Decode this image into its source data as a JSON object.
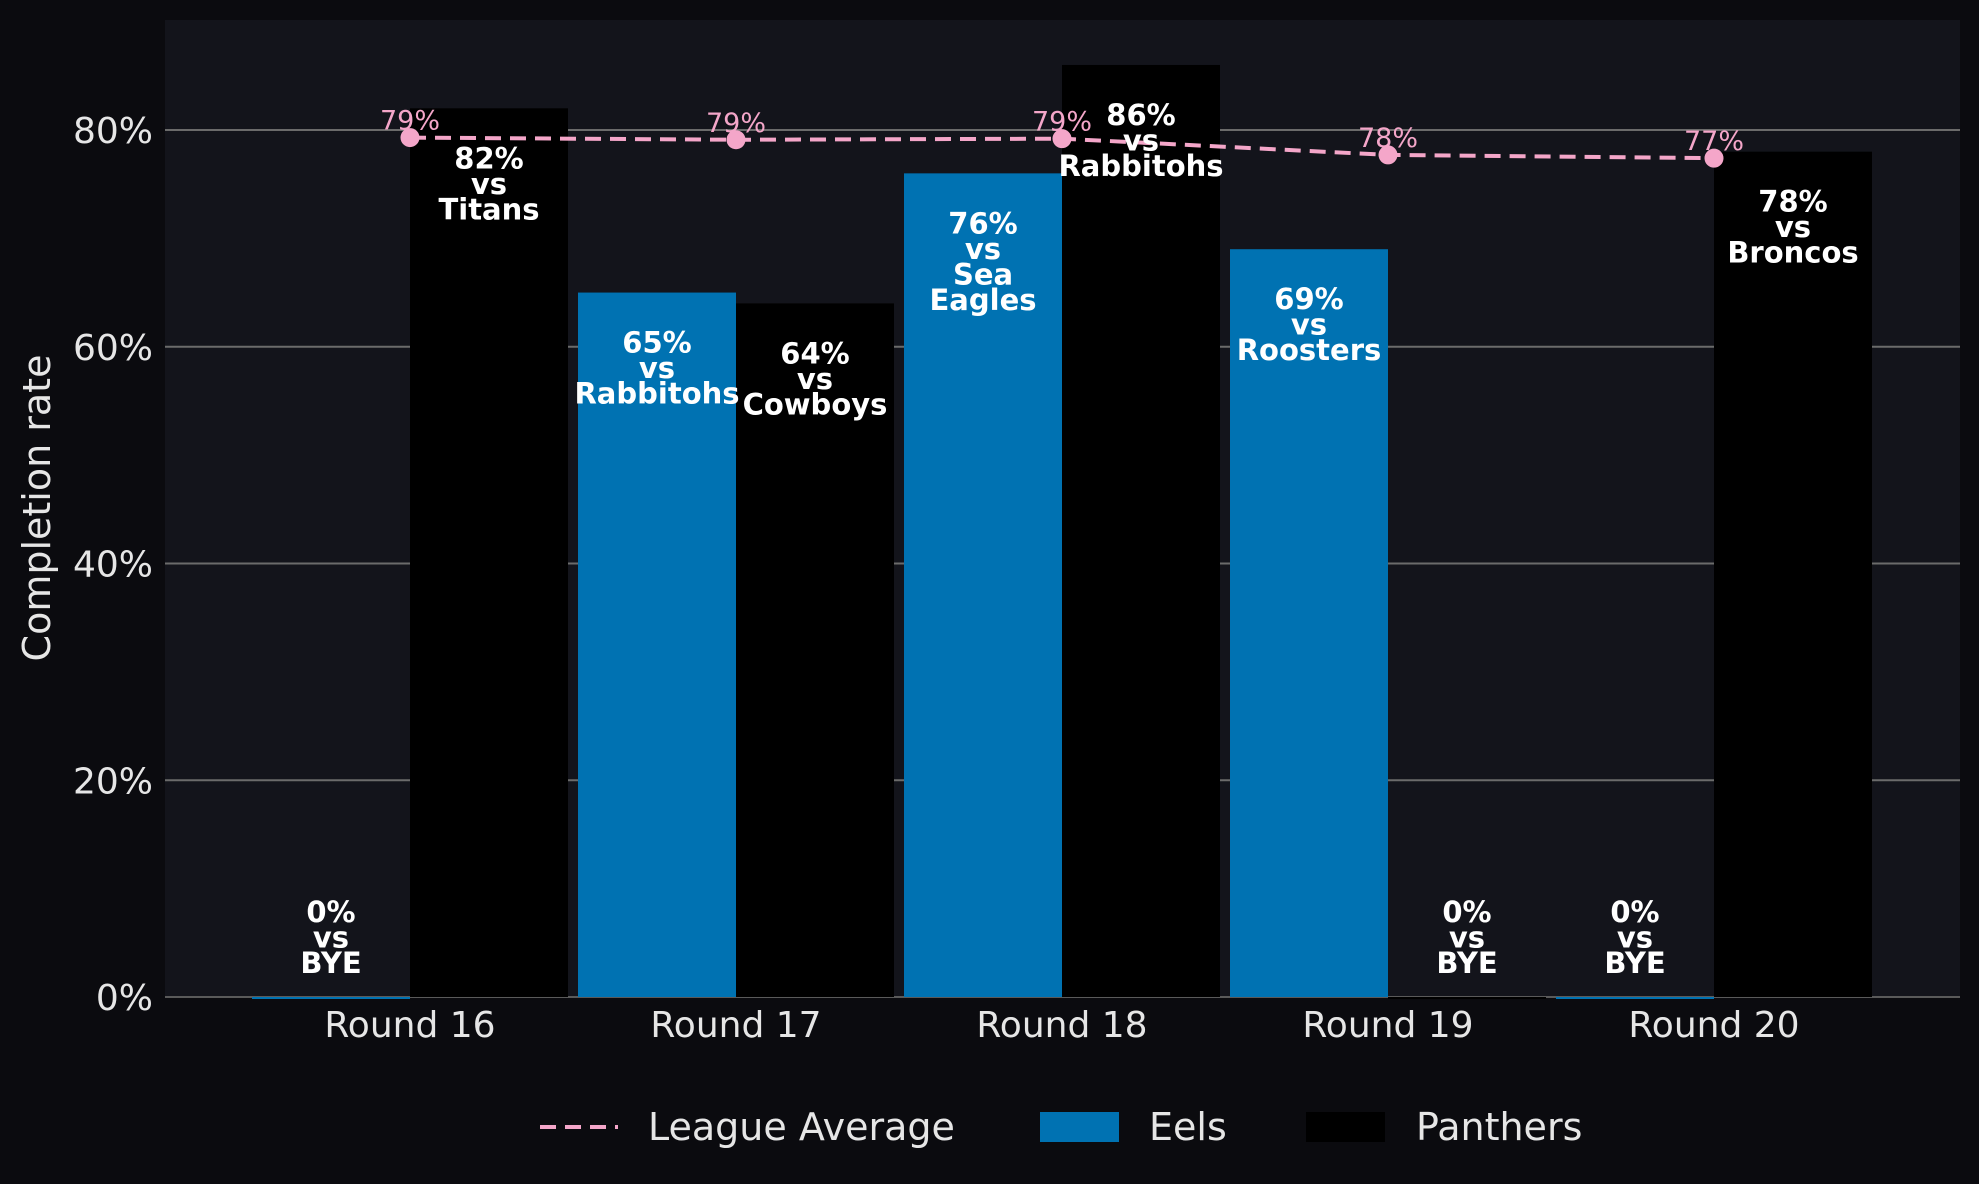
{
  "chart_data": {
    "type": "bar",
    "title": "",
    "xlabel": "",
    "ylabel": "Completion rate",
    "ylim": [
      0,
      90
    ],
    "yticks": [
      "0%",
      "20%",
      "40%",
      "60%",
      "80%"
    ],
    "categories": [
      "Round 16",
      "Round 17",
      "Round 18",
      "Round 19",
      "Round 20"
    ],
    "series": [
      {
        "name": "Eels",
        "color": "#0072B2",
        "values": [
          0,
          65,
          76,
          69,
          0
        ],
        "labels": [
          "0%\nvs\nBYE",
          "65%\nvs\nRabbitohs",
          "76%\nvs\nSea\nEagles",
          "69%\nvs\nRoosters",
          "0%\nvs\nBYE"
        ]
      },
      {
        "name": "Panthers",
        "color": "#000000",
        "values": [
          82,
          64,
          86,
          0,
          78
        ],
        "labels": [
          "82%\nvs\nTitans",
          "64%\nvs\nCowboys",
          "86%\nvs\nRabbitohs",
          "0%\nvs\nBYE",
          "78%\nvs\nBroncos"
        ]
      }
    ],
    "line": {
      "name": "League Average",
      "color": "#F4A6C9",
      "values": [
        79.3,
        79.1,
        79.2,
        77.7,
        77.4
      ],
      "labels": [
        "79%",
        "79%",
        "79%",
        "78%",
        "77%"
      ]
    },
    "grid": true,
    "legend_position": "bottom-center",
    "legend": [
      "League Average",
      "Eels",
      "Panthers"
    ]
  }
}
